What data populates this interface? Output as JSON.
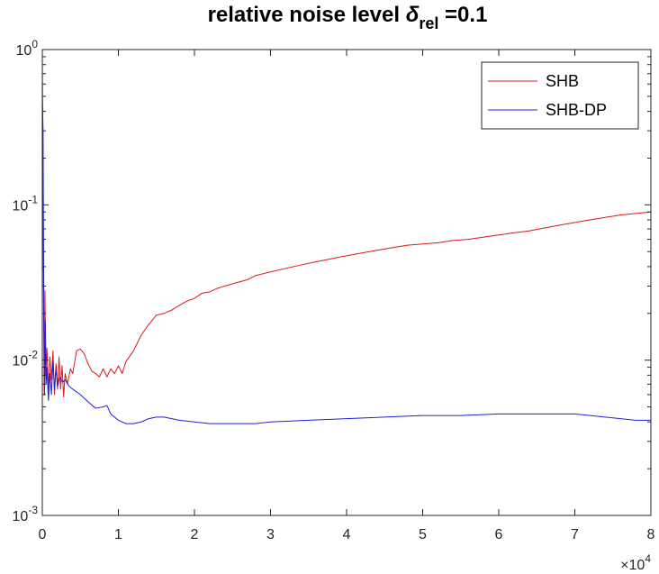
{
  "chart_data": {
    "type": "line",
    "title": {
      "prefix": "relative noise level ",
      "symbol": "δ",
      "subscript": "rel",
      "suffix": " =0.1"
    },
    "xlabel": "",
    "ylabel": "",
    "xlim": [
      0,
      80000
    ],
    "ylim": [
      0.001,
      1
    ],
    "yscale": "log",
    "grid": false,
    "legend_position": "top-right",
    "x_ticks": [
      {
        "value": 0,
        "label": "0"
      },
      {
        "value": 10000,
        "label": "1"
      },
      {
        "value": 20000,
        "label": "2"
      },
      {
        "value": 30000,
        "label": "3"
      },
      {
        "value": 40000,
        "label": "4"
      },
      {
        "value": 50000,
        "label": "5"
      },
      {
        "value": 60000,
        "label": "6"
      },
      {
        "value": 70000,
        "label": "7"
      },
      {
        "value": 80000,
        "label": "8"
      }
    ],
    "x_exponent": {
      "base": "×10",
      "power": "4"
    },
    "y_ticks": [
      {
        "value": 1,
        "base": "10",
        "power": "0"
      },
      {
        "value": 0.1,
        "base": "10",
        "power": "-1"
      },
      {
        "value": 0.01,
        "base": "10",
        "power": "-2"
      },
      {
        "value": 0.001,
        "base": "10",
        "power": "-3"
      }
    ],
    "series": [
      {
        "name": "SHB",
        "color": "#d7191c",
        "points": [
          [
            0,
            0.95
          ],
          [
            150,
            0.03
          ],
          [
            250,
            0.006
          ],
          [
            350,
            0.028
          ],
          [
            450,
            0.008
          ],
          [
            600,
            0.012
          ],
          [
            800,
            0.0065
          ],
          [
            1000,
            0.0105
          ],
          [
            1200,
            0.0075
          ],
          [
            1400,
            0.0115
          ],
          [
            1600,
            0.006
          ],
          [
            1800,
            0.0095
          ],
          [
            2000,
            0.0065
          ],
          [
            2200,
            0.0105
          ],
          [
            2400,
            0.0065
          ],
          [
            2600,
            0.0092
          ],
          [
            2800,
            0.0058
          ],
          [
            3000,
            0.0082
          ],
          [
            3300,
            0.007
          ],
          [
            3700,
            0.0088
          ],
          [
            4000,
            0.0082
          ],
          [
            4500,
            0.0115
          ],
          [
            5000,
            0.0118
          ],
          [
            5500,
            0.011
          ],
          [
            6000,
            0.0095
          ],
          [
            6500,
            0.0085
          ],
          [
            7000,
            0.0082
          ],
          [
            7500,
            0.0078
          ],
          [
            8000,
            0.0088
          ],
          [
            8500,
            0.0078
          ],
          [
            9000,
            0.0088
          ],
          [
            9500,
            0.0082
          ],
          [
            10000,
            0.0092
          ],
          [
            10500,
            0.0082
          ],
          [
            11000,
            0.0098
          ],
          [
            12000,
            0.0115
          ],
          [
            13000,
            0.0145
          ],
          [
            14000,
            0.017
          ],
          [
            15000,
            0.0195
          ],
          [
            16000,
            0.02
          ],
          [
            17000,
            0.021
          ],
          [
            18000,
            0.0225
          ],
          [
            19000,
            0.024
          ],
          [
            20000,
            0.025
          ],
          [
            21000,
            0.027
          ],
          [
            22000,
            0.0275
          ],
          [
            23000,
            0.029
          ],
          [
            24000,
            0.03
          ],
          [
            25000,
            0.031
          ],
          [
            26000,
            0.032
          ],
          [
            27000,
            0.033
          ],
          [
            28000,
            0.035
          ],
          [
            29000,
            0.036
          ],
          [
            30000,
            0.037
          ],
          [
            32000,
            0.039
          ],
          [
            34000,
            0.041
          ],
          [
            36000,
            0.043
          ],
          [
            38000,
            0.045
          ],
          [
            40000,
            0.047
          ],
          [
            42000,
            0.049
          ],
          [
            44000,
            0.051
          ],
          [
            46000,
            0.053
          ],
          [
            48000,
            0.055
          ],
          [
            50000,
            0.056
          ],
          [
            52000,
            0.057
          ],
          [
            54000,
            0.059
          ],
          [
            56000,
            0.06
          ],
          [
            58000,
            0.062
          ],
          [
            60000,
            0.064
          ],
          [
            62000,
            0.066
          ],
          [
            64000,
            0.068
          ],
          [
            66000,
            0.071
          ],
          [
            68000,
            0.074
          ],
          [
            70000,
            0.077
          ],
          [
            72000,
            0.08
          ],
          [
            74000,
            0.083
          ],
          [
            76000,
            0.086
          ],
          [
            78000,
            0.088
          ],
          [
            80000,
            0.09
          ]
        ]
      },
      {
        "name": "SHB-DP",
        "color": "#1f1fd6",
        "points": [
          [
            0,
            0.5
          ],
          [
            100,
            0.3
          ],
          [
            200,
            0.02
          ],
          [
            300,
            0.006
          ],
          [
            400,
            0.018
          ],
          [
            500,
            0.007
          ],
          [
            600,
            0.009
          ],
          [
            800,
            0.0055
          ],
          [
            1000,
            0.0082
          ],
          [
            1200,
            0.006
          ],
          [
            1400,
            0.0098
          ],
          [
            1600,
            0.0065
          ],
          [
            1800,
            0.0088
          ],
          [
            2000,
            0.0068
          ],
          [
            2300,
            0.0078
          ],
          [
            2700,
            0.0072
          ],
          [
            3000,
            0.0075
          ],
          [
            3500,
            0.0068
          ],
          [
            4000,
            0.0065
          ],
          [
            5000,
            0.006
          ],
          [
            6000,
            0.0054
          ],
          [
            7000,
            0.0049
          ],
          [
            8000,
            0.005
          ],
          [
            8500,
            0.0051
          ],
          [
            9000,
            0.0045
          ],
          [
            10000,
            0.0041
          ],
          [
            11000,
            0.0039
          ],
          [
            12000,
            0.0039
          ],
          [
            13000,
            0.004
          ],
          [
            14000,
            0.0042
          ],
          [
            15000,
            0.0043
          ],
          [
            16000,
            0.0043
          ],
          [
            17000,
            0.0042
          ],
          [
            18000,
            0.0041
          ],
          [
            20000,
            0.004
          ],
          [
            22000,
            0.0039
          ],
          [
            25000,
            0.0039
          ],
          [
            28000,
            0.0039
          ],
          [
            30000,
            0.004
          ],
          [
            35000,
            0.0041
          ],
          [
            40000,
            0.0042
          ],
          [
            45000,
            0.0043
          ],
          [
            50000,
            0.0044
          ],
          [
            55000,
            0.0044
          ],
          [
            60000,
            0.0045
          ],
          [
            65000,
            0.0045
          ],
          [
            70000,
            0.0045
          ],
          [
            72000,
            0.0044
          ],
          [
            74000,
            0.0043
          ],
          [
            76000,
            0.0042
          ],
          [
            78000,
            0.0041
          ],
          [
            80000,
            0.0041
          ]
        ]
      }
    ]
  }
}
